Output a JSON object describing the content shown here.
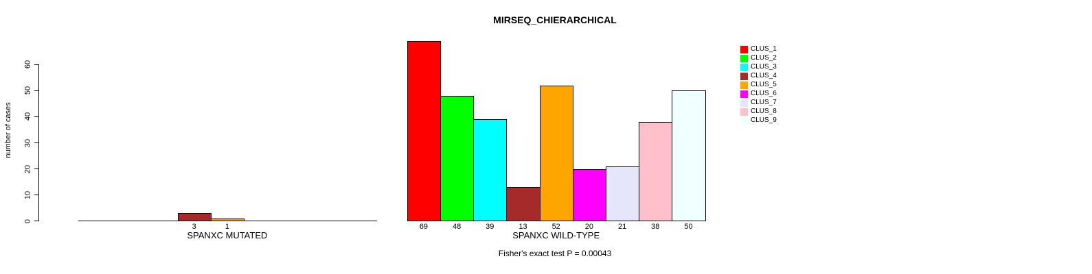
{
  "page": {
    "title": "MIRSEQ_CHIERARCHICAL",
    "y_axis_label": "number of cases",
    "footer_note": "Fisher's exact test P = 0.00043"
  },
  "chart_data": {
    "type": "bar",
    "title": "MIRSEQ_CHIERARCHICAL",
    "xlabel": "",
    "ylabel": "number of cases",
    "ylim": [
      0,
      60
    ],
    "yticks": [
      0,
      10,
      20,
      30,
      40,
      50,
      60
    ],
    "grid": false,
    "legend_position": "top-right",
    "legend_box": false,
    "bar_border_color": "#000000",
    "categories": [
      "SPANXC MUTATED",
      "SPANXC WILD-TYPE"
    ],
    "series": [
      {
        "name": "CLUS_1",
        "color": "#ff0000",
        "values": [
          0,
          69
        ]
      },
      {
        "name": "CLUS_2",
        "color": "#00ff00",
        "values": [
          0,
          48
        ]
      },
      {
        "name": "CLUS_3",
        "color": "#00ffff",
        "values": [
          0,
          39
        ]
      },
      {
        "name": "CLUS_4",
        "color": "#a52a2a",
        "values": [
          3,
          13
        ]
      },
      {
        "name": "CLUS_5",
        "color": "#ffa500",
        "values": [
          1,
          52
        ]
      },
      {
        "name": "CLUS_6",
        "color": "#ff00ff",
        "values": [
          0,
          20
        ]
      },
      {
        "name": "CLUS_7",
        "color": "#e6e6fa",
        "values": [
          0,
          21
        ]
      },
      {
        "name": "CLUS_8",
        "color": "#ffc0cb",
        "values": [
          0,
          38
        ]
      },
      {
        "name": "CLUS_9",
        "color": "#f0ffff",
        "values": [
          0,
          50
        ]
      }
    ],
    "value_label_rule": "numeric count shown under each nonzero bar",
    "annotation": "Fisher's exact test P = 0.00043"
  }
}
